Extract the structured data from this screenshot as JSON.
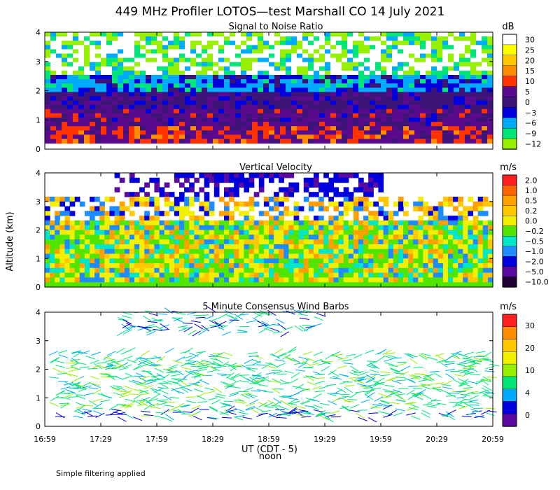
{
  "figure": {
    "title": "449 MHz Profiler LOTOS—test Marshall CO 14 July 2021",
    "ylabel": "Altitude (km)",
    "xlabel": "UT  (CDT - 5)",
    "noon_label": "noon",
    "footnote": "Simple filtering applied"
  },
  "chart_data": [
    {
      "type": "heatmap",
      "title": "Signal to Noise Ratio",
      "unit": "dB",
      "x": [
        "16:59",
        "17:29",
        "17:59",
        "18:29",
        "18:59",
        "19:29",
        "19:59",
        "20:29",
        "20:59"
      ],
      "yticks": [
        0,
        1,
        2,
        3,
        4
      ],
      "ylim": [
        0,
        4
      ],
      "colorbar": {
        "labels": [
          "30",
          "25",
          "20",
          "15",
          "10",
          "5",
          "0",
          "−3",
          "−6",
          "−9",
          "−12"
        ],
        "colors": [
          "#ffffff",
          "#ffff00",
          "#ffc800",
          "#ff8c00",
          "#ff3200",
          "#5a0a8c",
          "#3c1478",
          "#0000dc",
          "#00aaff",
          "#00e678",
          "#96f000"
        ]
      }
    },
    {
      "type": "heatmap",
      "title": "Vertical Velocity",
      "unit": "m/s",
      "x": [
        "16:59",
        "17:29",
        "17:59",
        "18:29",
        "18:59",
        "19:29",
        "19:59",
        "20:29",
        "20:59"
      ],
      "yticks": [
        0,
        1,
        2,
        3,
        4
      ],
      "ylim": [
        0,
        4
      ],
      "colorbar": {
        "labels": [
          "2.0",
          "1.0",
          "0.5",
          "0.2",
          "0.0",
          "−0.2",
          "−0.5",
          "−1.0",
          "−2.0",
          "−5.0",
          "−10.0"
        ],
        "colors": [
          "#ff1e1e",
          "#ff6400",
          "#ffa000",
          "#ffc800",
          "#f0f000",
          "#50e600",
          "#00e6c8",
          "#1e8cff",
          "#0000dc",
          "#5a0aa0",
          "#1e0032"
        ]
      }
    },
    {
      "type": "scatter",
      "title": "5 Minute Consensus Wind Barbs",
      "unit": "m/s",
      "x": [
        "16:59",
        "17:29",
        "17:59",
        "18:29",
        "18:59",
        "19:29",
        "19:59",
        "20:29",
        "20:59"
      ],
      "yticks": [
        0,
        1,
        2,
        3,
        4
      ],
      "ylim": [
        0,
        4
      ],
      "colorbar": {
        "labels": [
          "30",
          "20",
          "10",
          "4",
          "0"
        ],
        "colors": [
          "#ff1e1e",
          "#ff8c00",
          "#ffc800",
          "#f0f000",
          "#96f000",
          "#00e678",
          "#00aaff",
          "#0000dc",
          "#5a0aa0"
        ]
      }
    }
  ]
}
